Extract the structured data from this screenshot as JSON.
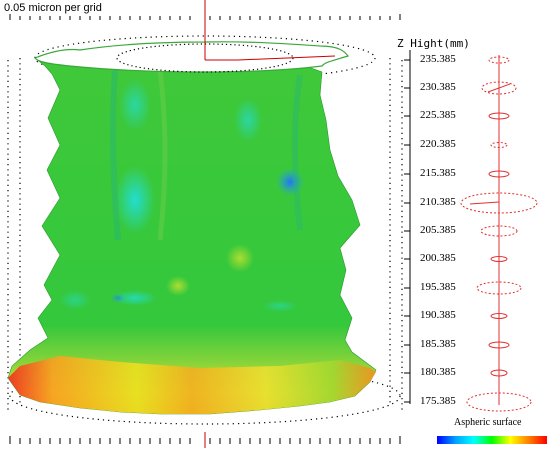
{
  "grid_scale_label": "0.05 micron per grid",
  "z_axis": {
    "title": "Z Hight(mm)",
    "values": [
      "235.385",
      "230.385",
      "225.385",
      "220.385",
      "215.385",
      "210.385",
      "205.385",
      "200.385",
      "195.385",
      "190.385",
      "185.385",
      "180.385",
      "175.385"
    ]
  },
  "legend": {
    "label": "Aspheric surface",
    "colors": [
      "#0000ff",
      "#00a0ff",
      "#00ffff",
      "#00ff00",
      "#ffff00",
      "#ff8000",
      "#ff0000"
    ]
  },
  "colors": {
    "surface_main": "#33cc33",
    "profile_red": "#e03030",
    "axis_red": "#cc0000"
  }
}
